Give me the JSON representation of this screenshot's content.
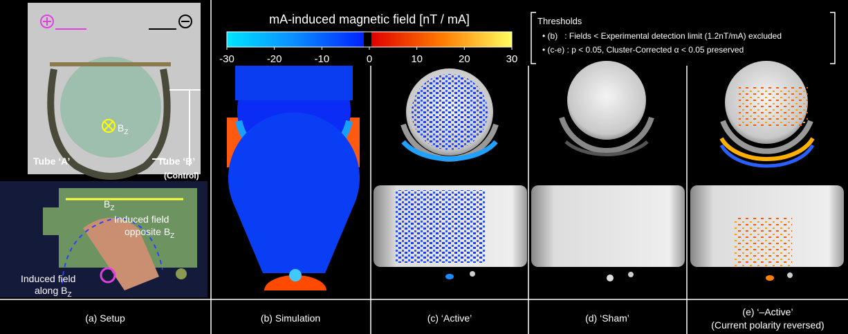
{
  "colorbar": {
    "title": "mA-induced magnetic field [nT / mA]",
    "lim": [
      -30,
      30
    ],
    "ticks": [
      -30,
      -20,
      -10,
      0,
      10,
      20,
      30
    ]
  },
  "thresholds": {
    "title": "Thresholds",
    "items": [
      "(b)   : Fields < Experimental detection limit (1.2nT/mA) excluded",
      "(c-e) : p < 0.05, Cluster-Corrected α < 0.05 preserved"
    ]
  },
  "setup": {
    "tube_a": "Tube ‘A’",
    "tube_b": "Tube ‘B’",
    "control": "(Control)",
    "bz": {
      "base": "B",
      "sub": "Z"
    },
    "induced_opposite": {
      "line1": "Induced field",
      "line2": "opposite B",
      "sub": "Z"
    },
    "induced_along": {
      "line1": "Induced field",
      "line2": "along B",
      "sub": "Z"
    }
  },
  "captions": [
    "(a) Setup",
    "(b) Simulation",
    "(c) ‘Active’",
    "(d) ‘Sham’",
    "(e) ‘–Active’",
    "(Current polarity reversed)"
  ]
}
